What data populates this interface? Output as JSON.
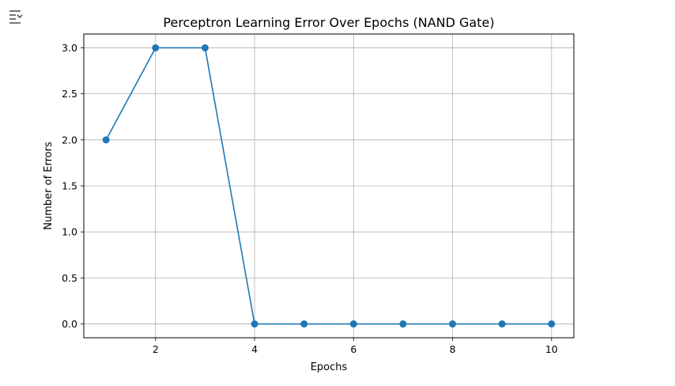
{
  "output_toggle_icon": "output-collapse-icon",
  "chart_data": {
    "type": "line",
    "title": "Perceptron Learning Error Over Epochs (NAND Gate)",
    "xlabel": "Epochs",
    "ylabel": "Number of Errors",
    "x": [
      1,
      2,
      3,
      4,
      5,
      6,
      7,
      8,
      9,
      10
    ],
    "series": [
      {
        "values": [
          2,
          3,
          3,
          0,
          0,
          0,
          0,
          0,
          0,
          0
        ],
        "marker": "circle",
        "color": "#1f77b4"
      }
    ],
    "xlim": [
      0.55,
      10.45
    ],
    "ylim": [
      -0.15,
      3.15
    ],
    "xticks": [
      2,
      4,
      6,
      8,
      10
    ],
    "xtick_labels": [
      "2",
      "4",
      "6",
      "8",
      "10"
    ],
    "yticks": [
      0.0,
      0.5,
      1.0,
      1.5,
      2.0,
      2.5,
      3.0
    ],
    "ytick_labels": [
      "0.0",
      "0.5",
      "1.0",
      "1.5",
      "2.0",
      "2.5",
      "3.0"
    ],
    "grid": true,
    "grid_color": "#b0b0b0"
  }
}
